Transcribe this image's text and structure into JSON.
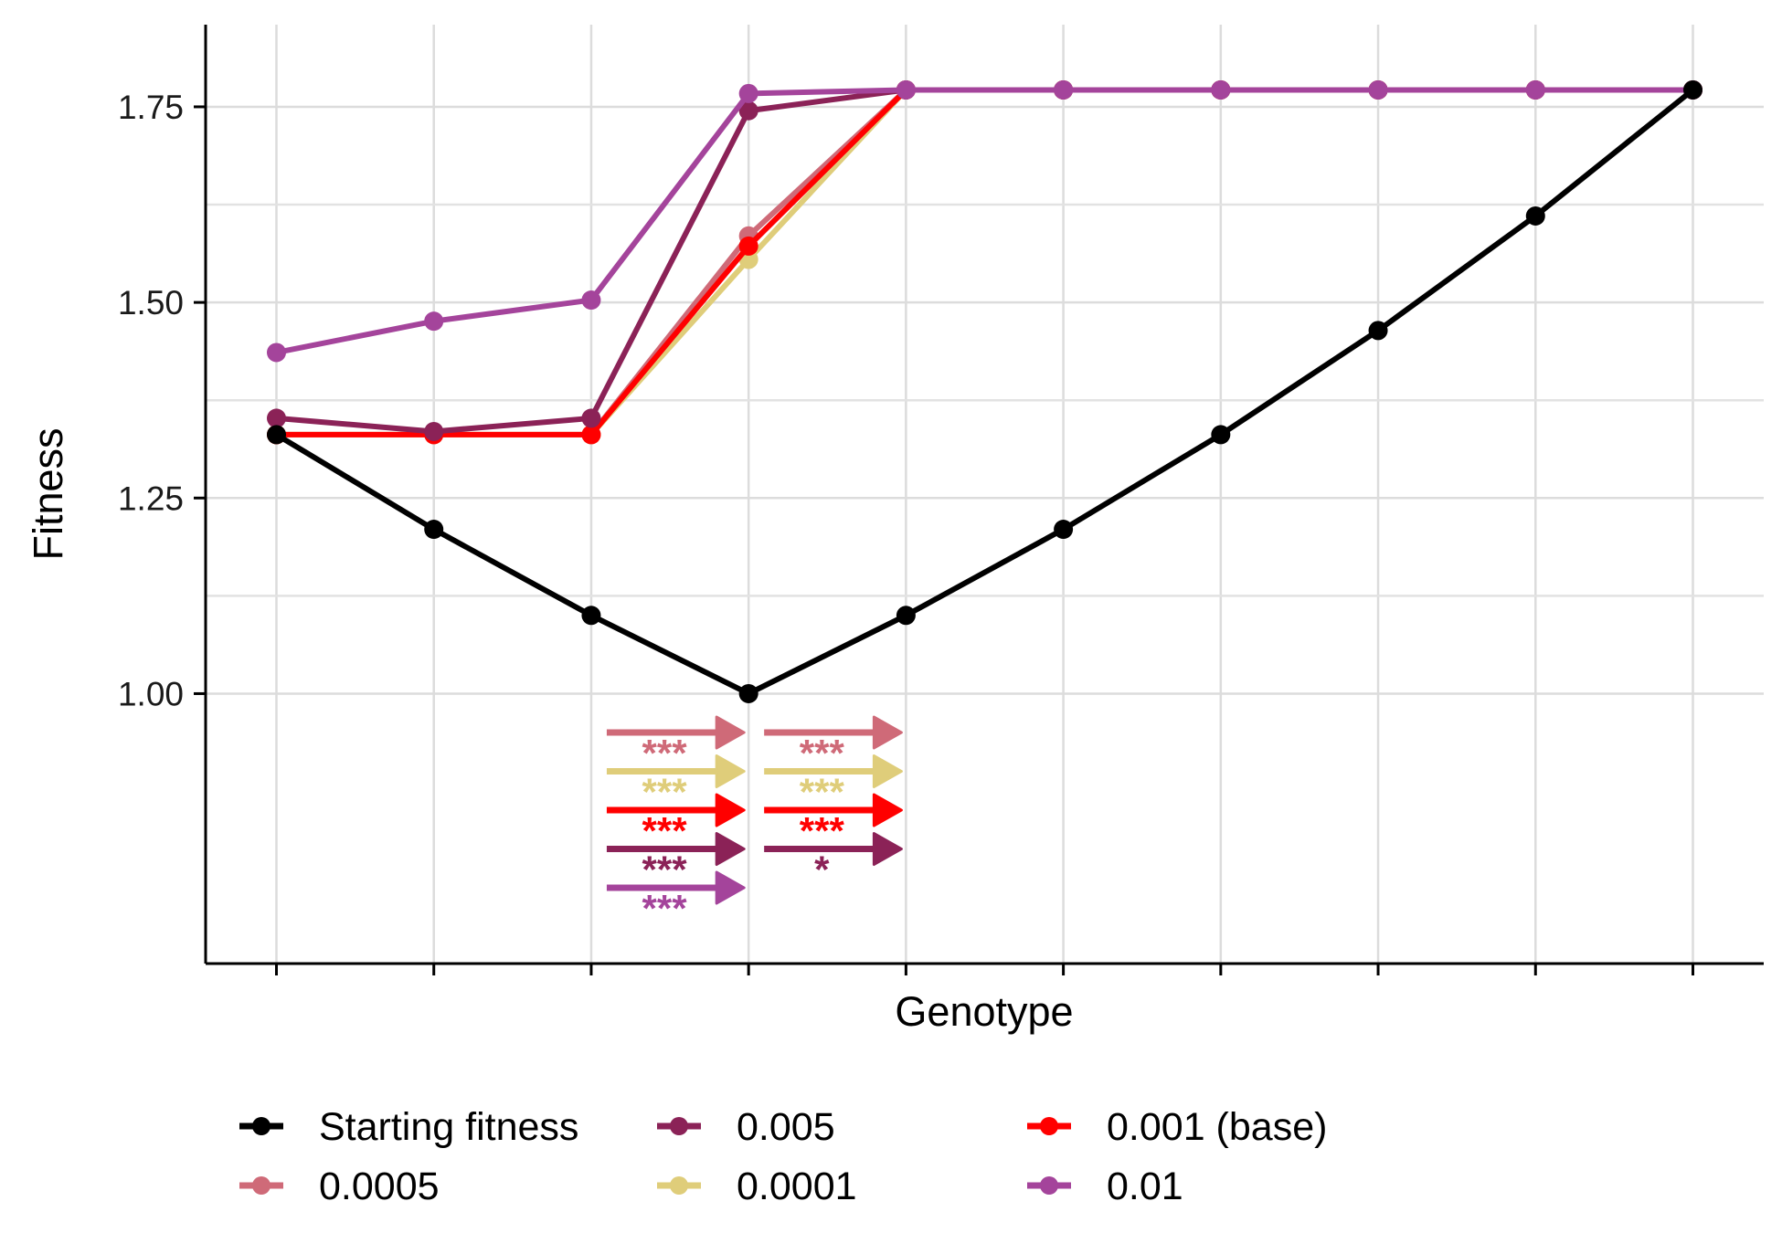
{
  "chart_data": {
    "type": "line",
    "title": "",
    "xlabel": "Genotype",
    "ylabel": "Fitness",
    "x": [
      1,
      2,
      3,
      4,
      5,
      6,
      7,
      8,
      9,
      10
    ],
    "xlim": [
      0.55,
      10.45
    ],
    "ylim": [
      0.655,
      1.855
    ],
    "yticks": [
      1.0,
      1.25,
      1.5,
      1.75
    ],
    "ytick_labels": [
      "1.00",
      "1.25",
      "1.50",
      "1.75"
    ],
    "grid": true,
    "legend_position": "bottom",
    "series": [
      {
        "name": "Starting fitness",
        "color": "#000000",
        "values": [
          1.331,
          1.21,
          1.1,
          1.0,
          1.1,
          1.21,
          1.331,
          1.4641,
          1.6105,
          1.7716
        ]
      },
      {
        "name": "0.0001",
        "color": "#dfcd7a",
        "values": [
          1.331,
          1.331,
          1.331,
          1.555,
          1.7716,
          1.7716,
          1.7716,
          1.7716,
          1.7716,
          1.7716
        ]
      },
      {
        "name": "0.0005",
        "color": "#cf6a78",
        "values": [
          1.331,
          1.331,
          1.331,
          1.585,
          1.7716,
          1.7716,
          1.7716,
          1.7716,
          1.7716,
          1.7716
        ]
      },
      {
        "name": "0.001 (base)",
        "color": "#ff0000",
        "values": [
          1.331,
          1.331,
          1.331,
          1.572,
          1.7716,
          1.7716,
          1.7716,
          1.7716,
          1.7716,
          1.7716
        ]
      },
      {
        "name": "0.005",
        "color": "#8b2257",
        "values": [
          1.352,
          1.335,
          1.352,
          1.745,
          1.7716,
          1.7716,
          1.7716,
          1.7716,
          1.7716,
          1.7716
        ]
      },
      {
        "name": "0.01",
        "color": "#a4449b",
        "values": [
          1.436,
          1.476,
          1.503,
          1.767,
          1.7716,
          1.7716,
          1.7716,
          1.7716,
          1.7716,
          1.7716
        ]
      }
    ],
    "draw_order": [
      2,
      1,
      3,
      4,
      5,
      0
    ],
    "legend_order": [
      0,
      2,
      4,
      1,
      3,
      5
    ],
    "annotations": [
      {
        "segment": [
          3,
          4
        ],
        "arrows": [
          {
            "series": "0.0005",
            "color": "#cf6a78",
            "label": "***"
          },
          {
            "series": "0.0001",
            "color": "#dfcd7a",
            "label": "***"
          },
          {
            "series": "0.001 (base)",
            "color": "#ff0000",
            "label": "***"
          },
          {
            "series": "0.005",
            "color": "#8b2257",
            "label": "***"
          },
          {
            "series": "0.01",
            "color": "#a4449b",
            "label": "***"
          }
        ]
      },
      {
        "segment": [
          4,
          5
        ],
        "arrows": [
          {
            "series": "0.0005",
            "color": "#cf6a78",
            "label": "***"
          },
          {
            "series": "0.0001",
            "color": "#dfcd7a",
            "label": "***"
          },
          {
            "series": "0.001 (base)",
            "color": "#ff0000",
            "label": "***"
          },
          {
            "series": "0.005",
            "color": "#8b2257",
            "label": "*"
          }
        ]
      }
    ]
  }
}
